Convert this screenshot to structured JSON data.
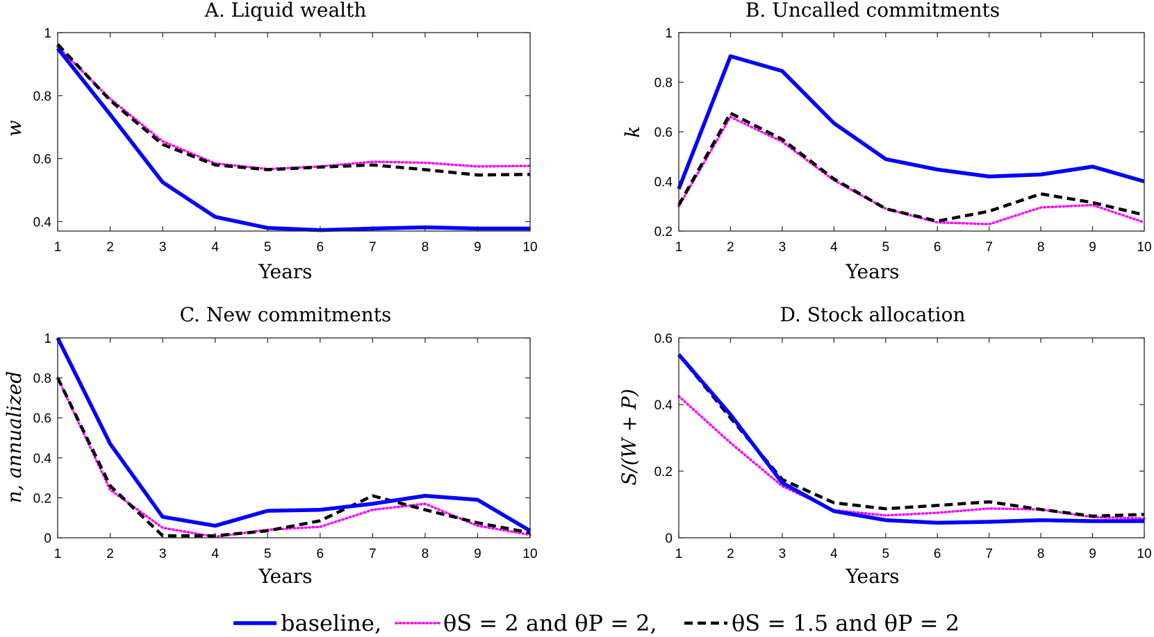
{
  "chart_data": [
    {
      "type": "line",
      "title": "A. Liquid wealth",
      "xlabel": "Years",
      "ylabel": "w",
      "xlim": [
        1,
        10
      ],
      "ylim": [
        0.37,
        1.0
      ],
      "xticks": [
        1,
        2,
        3,
        4,
        5,
        6,
        7,
        8,
        9,
        10
      ],
      "yticks": [
        0.4,
        0.6,
        0.8,
        1
      ],
      "ytick_labels": [
        "0.4",
        "0.6",
        "0.8",
        "1"
      ],
      "x": [
        1,
        2,
        3,
        4,
        5,
        6,
        7,
        8,
        9,
        10
      ],
      "series": [
        {
          "key": "baseline",
          "values": [
            0.95,
            0.74,
            0.525,
            0.415,
            0.38,
            0.373,
            0.378,
            0.382,
            0.378,
            0.378
          ]
        },
        {
          "key": "theta2",
          "values": [
            0.955,
            0.79,
            0.655,
            0.585,
            0.567,
            0.575,
            0.59,
            0.587,
            0.575,
            0.577
          ]
        },
        {
          "key": "theta15",
          "values": [
            0.963,
            0.785,
            0.645,
            0.58,
            0.565,
            0.573,
            0.58,
            0.565,
            0.548,
            0.55
          ]
        }
      ]
    },
    {
      "type": "line",
      "title": "B. Uncalled commitments",
      "xlabel": "Years",
      "ylabel": "k",
      "xlim": [
        1,
        10
      ],
      "ylim": [
        0.2,
        1.0
      ],
      "xticks": [
        1,
        2,
        3,
        4,
        5,
        6,
        7,
        8,
        9,
        10
      ],
      "yticks": [
        0.2,
        0.4,
        0.6,
        0.8,
        1
      ],
      "ytick_labels": [
        "0.2",
        "0.4",
        "0.6",
        "0.8",
        "1"
      ],
      "x": [
        1,
        2,
        3,
        4,
        5,
        6,
        7,
        8,
        9,
        10
      ],
      "series": [
        {
          "key": "baseline",
          "values": [
            0.37,
            0.905,
            0.845,
            0.635,
            0.49,
            0.448,
            0.42,
            0.428,
            0.46,
            0.4
          ]
        },
        {
          "key": "theta2",
          "values": [
            0.3,
            0.66,
            0.56,
            0.405,
            0.29,
            0.235,
            0.228,
            0.295,
            0.305,
            0.235
          ]
        },
        {
          "key": "theta15",
          "values": [
            0.305,
            0.675,
            0.57,
            0.41,
            0.29,
            0.24,
            0.28,
            0.35,
            0.315,
            0.265
          ]
        }
      ]
    },
    {
      "type": "line",
      "title": "C. New commitments",
      "xlabel": "Years",
      "ylabel": "n, annualized",
      "xlim": [
        1,
        10
      ],
      "ylim": [
        0,
        1.0
      ],
      "xticks": [
        1,
        2,
        3,
        4,
        5,
        6,
        7,
        8,
        9,
        10
      ],
      "yticks": [
        0,
        0.2,
        0.4,
        0.6,
        0.8,
        1
      ],
      "ytick_labels": [
        "0",
        "0.2",
        "0.4",
        "0.6",
        "0.8",
        "1"
      ],
      "x": [
        1,
        2,
        3,
        4,
        5,
        6,
        7,
        8,
        9,
        10
      ],
      "series": [
        {
          "key": "baseline",
          "values": [
            1.0,
            0.47,
            0.105,
            0.06,
            0.135,
            0.14,
            0.17,
            0.21,
            0.19,
            0.035
          ]
        },
        {
          "key": "theta2",
          "values": [
            0.8,
            0.24,
            0.05,
            0.005,
            0.04,
            0.055,
            0.14,
            0.17,
            0.06,
            0.015
          ]
        },
        {
          "key": "theta15",
          "values": [
            0.8,
            0.26,
            0.01,
            0.01,
            0.035,
            0.085,
            0.21,
            0.14,
            0.075,
            0.025
          ]
        }
      ]
    },
    {
      "type": "line",
      "title": "D. Stock allocation",
      "xlabel": "Years",
      "ylabel": "S/(W + P)",
      "xlim": [
        1,
        10
      ],
      "ylim": [
        0,
        0.6
      ],
      "xticks": [
        1,
        2,
        3,
        4,
        5,
        6,
        7,
        8,
        9,
        10
      ],
      "yticks": [
        0,
        0.2,
        0.4,
        0.6
      ],
      "ytick_labels": [
        "0",
        "0.2",
        "0.4",
        "0.6"
      ],
      "x": [
        1,
        2,
        3,
        4,
        5,
        6,
        7,
        8,
        9,
        10
      ],
      "series": [
        {
          "key": "baseline",
          "values": [
            0.55,
            0.37,
            0.165,
            0.08,
            0.053,
            0.045,
            0.048,
            0.053,
            0.05,
            0.05
          ]
        },
        {
          "key": "theta2",
          "values": [
            0.425,
            0.285,
            0.155,
            0.083,
            0.067,
            0.075,
            0.088,
            0.085,
            0.062,
            0.058
          ]
        },
        {
          "key": "theta15",
          "values": [
            0.55,
            0.36,
            0.175,
            0.105,
            0.087,
            0.097,
            0.108,
            0.085,
            0.065,
            0.07
          ]
        }
      ]
    }
  ],
  "series_styles": {
    "baseline": {
      "color": "#0000ff",
      "dash": "solid"
    },
    "theta2": {
      "color": "#ff00ff",
      "dash": "dotted"
    },
    "theta15": {
      "color": "#000000",
      "dash": "dashed"
    }
  },
  "legend": {
    "placement": "bottom-center",
    "entries": [
      {
        "key": "baseline",
        "label": "baseline,"
      },
      {
        "key": "theta2",
        "label": "θS = 2 and θP = 2,"
      },
      {
        "key": "theta15",
        "label": "θS = 1.5 and θP = 2"
      }
    ]
  }
}
